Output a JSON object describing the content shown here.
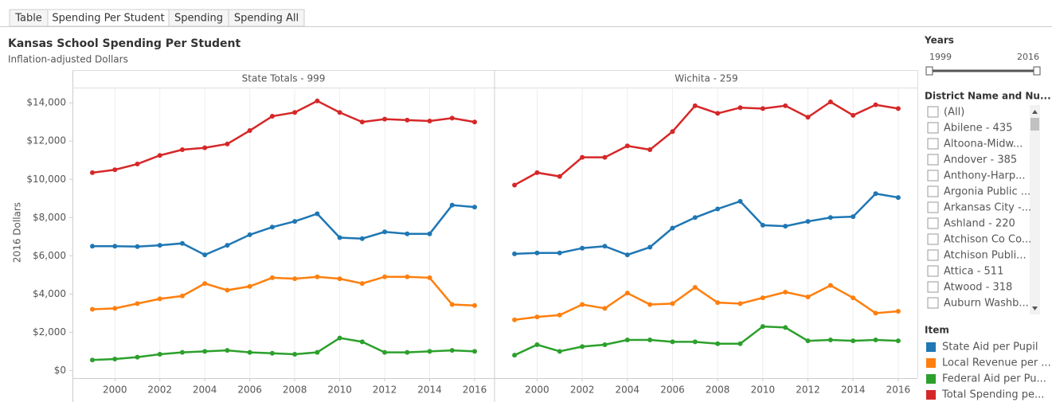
{
  "tabs": [
    "Table",
    "Spending Per Student",
    "Spending",
    "Spending All"
  ],
  "active_tab": 1,
  "header": {
    "title": "Kansas School Spending Per Student",
    "subtitle": "Inflation-adjusted Dollars"
  },
  "filters": {
    "years": {
      "title": "Years",
      "min_label": "1999",
      "max_label": "2016"
    },
    "district": {
      "title": "District Name and Nu...",
      "items": [
        "(All)",
        "Abilene - 435",
        "Altoona-Midw...",
        "Andover - 385",
        "Anthony-Harp...",
        "Argonia Public ...",
        "Arkansas City -...",
        "Ashland - 220",
        "Atchison Co Co...",
        "Atchison Publi...",
        "Attica - 511",
        "Atwood - 318",
        "Auburn Washb..."
      ]
    },
    "item_legend_title": "Item"
  },
  "chart_data": [
    {
      "type": "line",
      "title": "State Totals - 999",
      "ylabel": "2016 Dollars",
      "x": [
        1999,
        2000,
        2001,
        2002,
        2003,
        2004,
        2005,
        2006,
        2007,
        2008,
        2009,
        2010,
        2011,
        2012,
        2013,
        2014,
        2015,
        2016
      ],
      "xlim": [
        1998.15,
        2016.85
      ],
      "xticks": [
        2000,
        2002,
        2004,
        2006,
        2008,
        2010,
        2012,
        2014,
        2016
      ],
      "ylim": [
        -400,
        14800
      ],
      "yticks": [
        {
          "value": 0,
          "label": "$0"
        },
        {
          "value": 2000,
          "label": "$2,000"
        },
        {
          "value": 4000,
          "label": "$4,000"
        },
        {
          "value": 6000,
          "label": "$6,000"
        },
        {
          "value": 8000,
          "label": "$8,000"
        },
        {
          "value": 10000,
          "label": "$10,000"
        },
        {
          "value": 12000,
          "label": "$12,000"
        },
        {
          "value": 14000,
          "label": "$14,000"
        }
      ],
      "grid": true,
      "series": [
        {
          "name": "State Aid per Pupil",
          "color": "#1f77b4",
          "values": [
            6500,
            6500,
            6480,
            6550,
            6650,
            6050,
            6550,
            7100,
            7500,
            7800,
            8200,
            6950,
            6900,
            7250,
            7150,
            7150,
            8650,
            8550
          ]
        },
        {
          "name": "Local Revenue per ...",
          "color": "#ff7f0e",
          "values": [
            3200,
            3250,
            3500,
            3750,
            3900,
            4550,
            4200,
            4400,
            4850,
            4800,
            4900,
            4800,
            4550,
            4900,
            4900,
            4850,
            3450,
            3400
          ]
        },
        {
          "name": "Federal Aid per Pu...",
          "color": "#2ca02c",
          "values": [
            550,
            600,
            700,
            850,
            950,
            1000,
            1050,
            950,
            900,
            850,
            950,
            1700,
            1500,
            950,
            950,
            1000,
            1050,
            1000
          ]
        },
        {
          "name": "Total Spending pe...",
          "color": "#d62728",
          "values": [
            10350,
            10500,
            10800,
            11250,
            11550,
            11650,
            11850,
            12550,
            13300,
            13500,
            14100,
            13500,
            13000,
            13150,
            13100,
            13050,
            13200,
            13000
          ]
        }
      ]
    },
    {
      "type": "line",
      "title": "Wichita - 259",
      "x": [
        1999,
        2000,
        2001,
        2002,
        2003,
        2004,
        2005,
        2006,
        2007,
        2008,
        2009,
        2010,
        2011,
        2012,
        2013,
        2014,
        2015,
        2016
      ],
      "xlim": [
        1998.15,
        2016.85
      ],
      "xticks": [
        2000,
        2002,
        2004,
        2006,
        2008,
        2010,
        2012,
        2014,
        2016
      ],
      "ylim": [
        -400,
        14800
      ],
      "grid": true,
      "series": [
        {
          "color": "#1f77b4",
          "values": [
            6100,
            6150,
            6150,
            6400,
            6500,
            6050,
            6450,
            7450,
            8000,
            8450,
            8850,
            7600,
            7550,
            7800,
            8000,
            8050,
            9250,
            9050
          ]
        },
        {
          "color": "#ff7f0e",
          "values": [
            2650,
            2800,
            2900,
            3450,
            3250,
            4050,
            3450,
            3500,
            4350,
            3550,
            3500,
            3800,
            4100,
            3850,
            4450,
            3800,
            3000,
            3100
          ]
        },
        {
          "color": "#2ca02c",
          "values": [
            800,
            1350,
            1000,
            1250,
            1350,
            1600,
            1600,
            1500,
            1500,
            1400,
            1400,
            2300,
            2250,
            1550,
            1600,
            1550,
            1600,
            1550
          ]
        },
        {
          "color": "#d62728",
          "values": [
            9700,
            10350,
            10150,
            11150,
            11150,
            11750,
            11550,
            12500,
            13850,
            13450,
            13750,
            13700,
            13850,
            13250,
            14050,
            13350,
            13900,
            13700
          ]
        }
      ]
    }
  ]
}
